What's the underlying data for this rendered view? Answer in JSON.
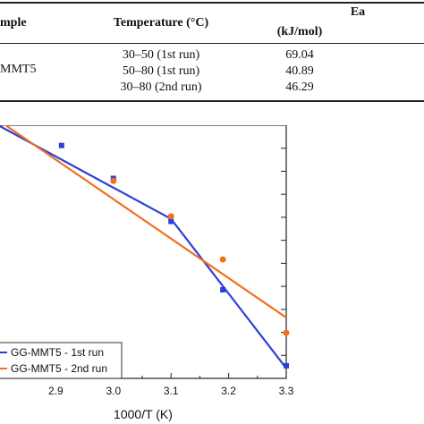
{
  "table": {
    "headers": {
      "sample": "mple",
      "temperature": "Temperature (°C)",
      "ea_line1": "Ea",
      "ea_line2": "(kJ/mol)"
    },
    "sample_label": "MMT5",
    "rows": [
      {
        "temperature": "30–50 (1st run)",
        "ea": "69.04"
      },
      {
        "temperature": "50–80 (1st run)",
        "ea": "40.89"
      },
      {
        "temperature": "30–80 (2nd run)",
        "ea": "46.29"
      }
    ]
  },
  "chart_data": {
    "type": "line",
    "xlabel": "1000/T (K)",
    "ylabel": "",
    "xlim": [
      2.8,
      3.3
    ],
    "x_ticks": [
      "2.9",
      "3.0",
      "3.1",
      "3.2",
      "3.3"
    ],
    "legend_position": "bottom-left",
    "series": [
      {
        "name": "GG-MMT5 - 1st run",
        "color": "#2e3fd6",
        "marker": "square",
        "x": [
          2.91,
          3.0,
          3.1,
          3.19,
          3.3
        ],
        "y_rel": [
          0.92,
          0.79,
          0.62,
          0.35,
          0.05
        ]
      },
      {
        "name": "GG-MMT5 - 2nd run",
        "color": "#f07020",
        "marker": "circle",
        "x": [
          3.0,
          3.1,
          3.19,
          3.3
        ],
        "y_rel": [
          0.78,
          0.64,
          0.47,
          0.18
        ]
      }
    ],
    "fit_lines": [
      {
        "series": "GG-MMT5 - 1st run",
        "color": "#2e3fd6",
        "x": [
          2.8,
          3.1,
          3.3
        ],
        "y_rel": [
          1.0,
          0.63,
          0.04
        ]
      },
      {
        "series": "GG-MMT5 - 2nd run",
        "color": "#f07020",
        "x": [
          2.8,
          3.3
        ],
        "y_rel": [
          1.02,
          0.24
        ]
      }
    ]
  }
}
